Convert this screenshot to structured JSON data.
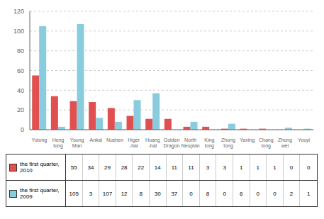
{
  "chart_data": {
    "type": "bar",
    "categories": [
      "Yutong",
      "Heng\ntong",
      "Young\nMan",
      "Ankal",
      "Nushen",
      "Higer\n-hal",
      "Huang\n-hal",
      "Golden\nDragon",
      "North\nNeoplan",
      "King\nlong",
      "Zhong\ntong",
      "Yaxing",
      "Chang\nlong",
      "Zhong\nwei",
      "Youyi"
    ],
    "series": [
      {
        "name": "the first quarter,\n2010",
        "color": "#e05050",
        "values": [
          55,
          34,
          29,
          28,
          22,
          14,
          11,
          11,
          3,
          3,
          1,
          1,
          1,
          0,
          0
        ]
      },
      {
        "name": "the first quarter,\n2009",
        "color": "#88ccdd",
        "values": [
          105,
          3,
          107,
          12,
          8,
          30,
          37,
          0,
          8,
          0,
          6,
          0,
          0,
          2,
          1
        ]
      }
    ],
    "ylim": [
      0,
      120
    ],
    "yticks": [
      0,
      20,
      40,
      60,
      80,
      100,
      120
    ],
    "grid": true,
    "legend": "bottom"
  }
}
